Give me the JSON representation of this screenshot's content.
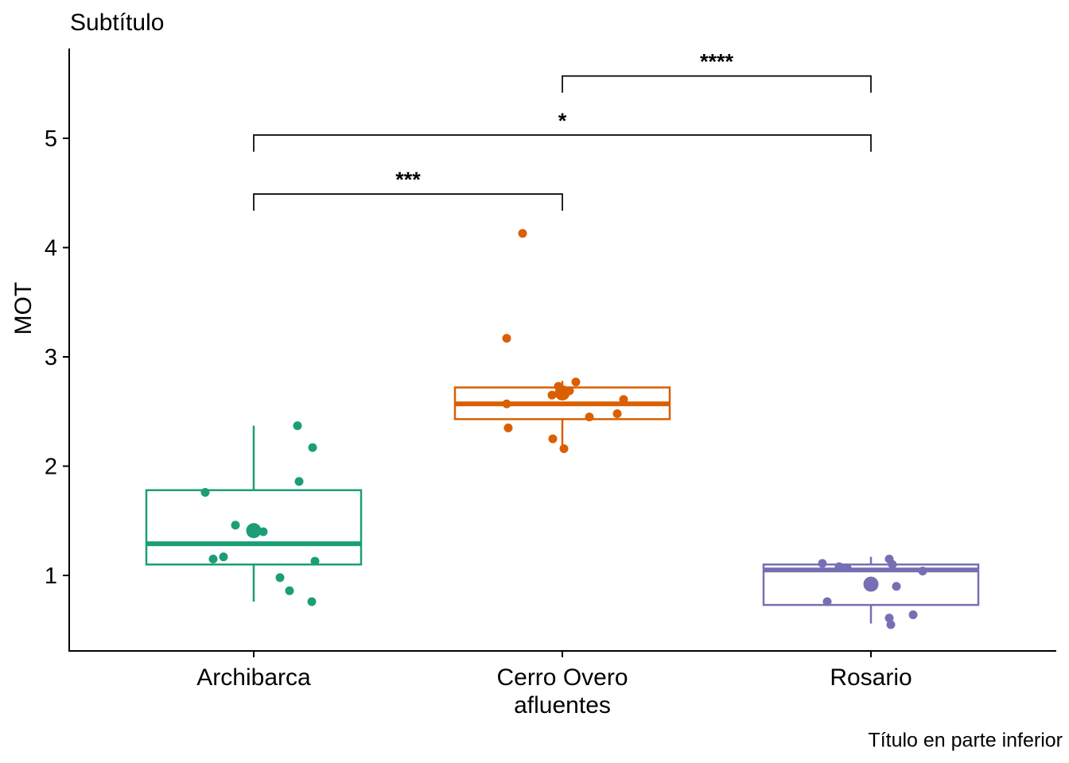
{
  "figure": {
    "subtitle": "Subtítulo",
    "caption": "Título en parte inferior",
    "y_axis_title": "MOT",
    "x_axis_title": "afluentes"
  },
  "chart_data": {
    "type": "boxplot",
    "title": "Subtítulo",
    "caption": "Título en parte inferior",
    "xlabel": "afluentes",
    "ylabel": "MOT",
    "categories": [
      "Archibarca",
      "Cerro Overo",
      "Rosario"
    ],
    "colors": [
      "#1B9E77",
      "#D95F02",
      "#7570B3"
    ],
    "axis_color": "#000000",
    "y_ticks": [
      1,
      2,
      3,
      4,
      5
    ],
    "ylim": [
      0.31,
      5.82
    ],
    "grid": "off",
    "legend": "none",
    "boxes": [
      {
        "category": "Archibarca",
        "q1": 1.1,
        "median": 1.29,
        "q3": 1.78,
        "whisker_low": 0.76,
        "whisker_high": 2.37,
        "mean": 1.41
      },
      {
        "category": "Cerro Overo",
        "q1": 2.43,
        "median": 2.57,
        "q3": 2.72,
        "whisker_low": 2.17,
        "whisker_high": 2.78,
        "mean": 2.67
      },
      {
        "category": "Rosario",
        "q1": 0.73,
        "median": 1.05,
        "q3": 1.1,
        "whisker_low": 0.56,
        "whisker_high": 1.17,
        "mean": 0.92
      }
    ],
    "points": [
      {
        "group": 0,
        "dx": 55,
        "y": 2.37
      },
      {
        "group": 0,
        "dx": 74,
        "y": 2.17
      },
      {
        "group": 0,
        "dx": 57,
        "y": 1.86
      },
      {
        "group": 0,
        "dx": -61,
        "y": 1.76
      },
      {
        "group": 0,
        "dx": -23,
        "y": 1.46
      },
      {
        "group": 0,
        "dx": 0,
        "y": 1.41,
        "mean": true
      },
      {
        "group": 0,
        "dx": 12,
        "y": 1.4
      },
      {
        "group": 0,
        "dx": -38,
        "y": 1.17
      },
      {
        "group": 0,
        "dx": -51,
        "y": 1.15
      },
      {
        "group": 0,
        "dx": 77,
        "y": 1.13
      },
      {
        "group": 0,
        "dx": 33,
        "y": 0.98
      },
      {
        "group": 0,
        "dx": 45,
        "y": 0.86
      },
      {
        "group": 0,
        "dx": 73,
        "y": 0.76
      },
      {
        "group": 1,
        "dx": -50,
        "y": 4.13
      },
      {
        "group": 1,
        "dx": -70,
        "y": 3.17
      },
      {
        "group": 1,
        "dx": 17,
        "y": 2.77
      },
      {
        "group": 1,
        "dx": -5,
        "y": 2.73
      },
      {
        "group": 1,
        "dx": 9,
        "y": 2.69
      },
      {
        "group": 1,
        "dx": 0,
        "y": 2.67,
        "mean": true
      },
      {
        "group": 1,
        "dx": -13,
        "y": 2.65
      },
      {
        "group": 1,
        "dx": 77,
        "y": 2.61
      },
      {
        "group": 1,
        "dx": -70,
        "y": 2.57
      },
      {
        "group": 1,
        "dx": 69,
        "y": 2.48
      },
      {
        "group": 1,
        "dx": 34,
        "y": 2.45
      },
      {
        "group": 1,
        "dx": -68,
        "y": 2.35
      },
      {
        "group": 1,
        "dx": -12,
        "y": 2.25
      },
      {
        "group": 1,
        "dx": 2,
        "y": 2.16
      },
      {
        "group": 2,
        "dx": 23,
        "y": 1.15
      },
      {
        "group": 2,
        "dx": -61,
        "y": 1.11
      },
      {
        "group": 2,
        "dx": 27,
        "y": 1.1
      },
      {
        "group": 2,
        "dx": -40,
        "y": 1.08
      },
      {
        "group": 2,
        "dx": -30,
        "y": 1.07
      },
      {
        "group": 2,
        "dx": 65,
        "y": 1.04
      },
      {
        "group": 2,
        "dx": 0,
        "y": 0.92,
        "mean": true
      },
      {
        "group": 2,
        "dx": 32,
        "y": 0.9
      },
      {
        "group": 2,
        "dx": -55,
        "y": 0.76
      },
      {
        "group": 2,
        "dx": 53,
        "y": 0.64
      },
      {
        "group": 2,
        "dx": 23,
        "y": 0.61
      },
      {
        "group": 2,
        "dx": 25,
        "y": 0.55
      }
    ],
    "significance_brackets": [
      {
        "from": 0,
        "to": 1,
        "label": "***",
        "y": 4.49
      },
      {
        "from": 0,
        "to": 2,
        "label": "*",
        "y": 5.03
      },
      {
        "from": 1,
        "to": 2,
        "label": "****",
        "y": 5.57
      }
    ]
  }
}
